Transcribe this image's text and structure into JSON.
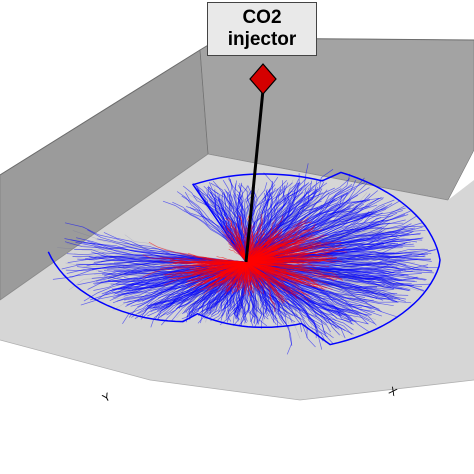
{
  "callout": {
    "line1": "CO2",
    "line2": "injector"
  },
  "axes": {
    "x_label": "X",
    "y_label": "Y"
  },
  "colors": {
    "background": "#ffffff",
    "wall": "#9b9b9b",
    "floor": "#d6d6d6",
    "near_well": "#ff0000",
    "far_field": "#0000ff",
    "injector_marker": "#d40000",
    "well_line": "#000000"
  },
  "legend_icons": {
    "injector": "diamond-marker-icon"
  }
}
